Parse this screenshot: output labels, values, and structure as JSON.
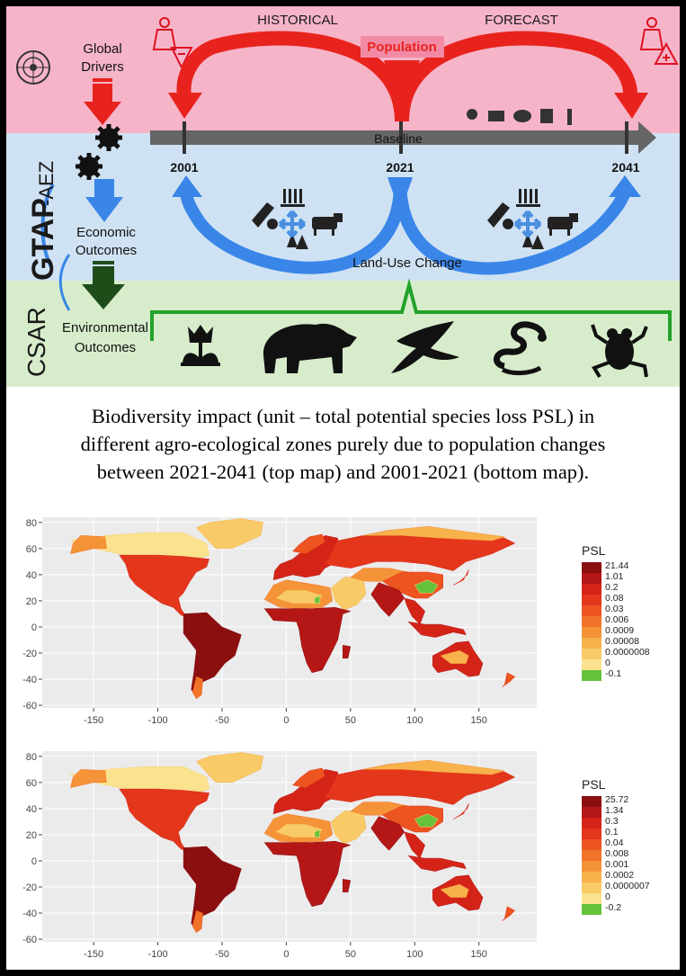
{
  "diagram": {
    "header_historical": "HISTORICAL",
    "header_forecast": "FORECAST",
    "population_label": "Population",
    "baseline_label": "Baseline",
    "land_use_label": "Land-Use Change",
    "years": [
      "2001",
      "2021",
      "2041"
    ],
    "left_column": {
      "global_drivers": [
        "Global",
        "Drivers"
      ],
      "economic_outcomes": [
        "Economic",
        "Outcomes"
      ],
      "environmental_outcomes": [
        "Environmental",
        "Outcomes"
      ]
    },
    "model_labels": {
      "gtap_prefix": "GTAP",
      "aez_suffix": "-AEZ",
      "csar": "CSAR"
    },
    "icons": {
      "population_decrease": "person-minus-icon",
      "population_increase": "person-plus-icon",
      "un_logo": "un-emblem-icon",
      "gears": "gears-icon",
      "land_use": [
        "wheat-icon",
        "forestry-icon",
        "cattle-icon",
        "tree-icon"
      ],
      "drivers": [
        "worker-icon",
        "machinery-icon",
        "pig-icon",
        "farmer-icon",
        "person-icon"
      ],
      "species": [
        "tulip-icon",
        "bear-icon",
        "swallow-icon",
        "snake-icon",
        "frog-icon"
      ]
    },
    "colors": {
      "pink_band": "#f6b4c8",
      "blue_band": "#cfe2f3",
      "green_band": "#d7eccb",
      "red_arrow": "#e8231d",
      "blue_arrow": "#3a86e8",
      "dark_green_arrow": "#1e4d1a",
      "baseline_arrow": "#666666"
    }
  },
  "caption": [
    "Biodiversity impact (unit – total potential species loss PSL) in",
    "different agro-ecological zones purely due to population changes",
    "between 2021-2041 (top map) and 2001-2021 (bottom map)."
  ],
  "maps": [
    {
      "name": "top",
      "legend_title": "PSL",
      "legend_values": [
        "21.44",
        "1.01",
        "0.2",
        "0.08",
        "0.03",
        "0.006",
        "0.0009",
        "0.00008",
        "0.0000008",
        "0",
        "-0.1"
      ],
      "legend_colors": [
        "#8b0f0f",
        "#b51616",
        "#d42418",
        "#e3361b",
        "#ec5420",
        "#f2732a",
        "#f59338",
        "#f7b24c",
        "#f9cb68",
        "#fbe28e",
        "#66c23a"
      ],
      "y_ticks": [
        "80",
        "60",
        "40",
        "20",
        "0",
        "-20",
        "-40",
        "-60"
      ],
      "x_ticks": [
        "-150",
        "-100",
        "-50",
        "0",
        "50",
        "100",
        "150"
      ]
    },
    {
      "name": "bottom",
      "legend_title": "PSL",
      "legend_values": [
        "25.72",
        "1.34",
        "0.3",
        "0.1",
        "0.04",
        "0.008",
        "0.001",
        "0.0002",
        "0.0000007",
        "0",
        "-0.2"
      ],
      "legend_colors": [
        "#8b0f0f",
        "#b51616",
        "#d42418",
        "#e3361b",
        "#ec5420",
        "#f2732a",
        "#f59338",
        "#f7b24c",
        "#f9cb68",
        "#fbe28e",
        "#66c23a"
      ],
      "y_ticks": [
        "80",
        "60",
        "40",
        "20",
        "0",
        "-20",
        "-40",
        "-60"
      ],
      "x_ticks": [
        "-150",
        "-100",
        "-50",
        "0",
        "50",
        "100",
        "150"
      ]
    }
  ]
}
